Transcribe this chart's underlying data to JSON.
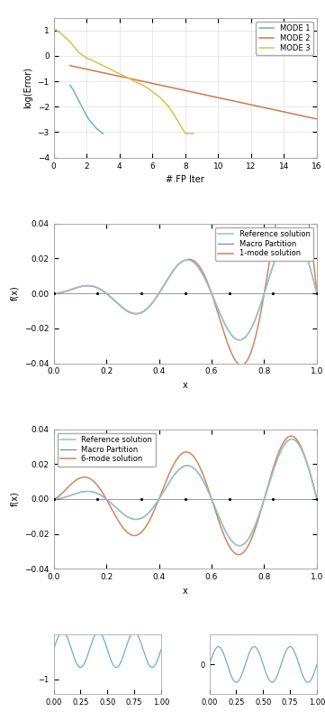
{
  "fig_width": 3.61,
  "fig_height": 7.89,
  "dpi": 100,
  "plot1": {
    "xlabel": "# FP Iter",
    "ylabel": "log(Error)",
    "xlim": [
      0,
      16
    ],
    "ylim": [
      -4,
      1.5
    ],
    "yticks": [
      -4,
      -3,
      -2,
      -1,
      0,
      1
    ],
    "xticks": [
      0,
      2,
      4,
      6,
      8,
      10,
      12,
      14,
      16
    ],
    "mode1_color": "#6aafd4",
    "mode2_color": "#d4784a",
    "mode3_color": "#d4c44a",
    "legend_labels": [
      "MODE 1",
      "MODE 2",
      "MODE 3"
    ],
    "mode1_x": [
      1.0,
      1.2,
      1.4,
      1.6,
      1.8,
      2.0,
      2.2,
      2.4,
      2.6,
      2.8,
      3.0
    ],
    "mode1_y": [
      -1.15,
      -1.35,
      -1.6,
      -1.85,
      -2.1,
      -2.35,
      -2.55,
      -2.7,
      -2.85,
      -2.95,
      -3.05
    ],
    "mode2_x": [
      1.0,
      2.0,
      3.0,
      4.0,
      5.0,
      6.0,
      7.0,
      8.0,
      9.0,
      10.0,
      11.0,
      12.0,
      13.0,
      14.0,
      15.0,
      16.0
    ],
    "mode2_y": [
      -0.38,
      -0.52,
      -0.66,
      -0.8,
      -0.94,
      -1.08,
      -1.22,
      -1.36,
      -1.5,
      -1.64,
      -1.78,
      -1.92,
      -2.06,
      -2.2,
      -2.34,
      -2.48
    ],
    "mode3_x": [
      0.0,
      0.5,
      1.0,
      1.5,
      2.0,
      2.5,
      3.0,
      3.5,
      4.0,
      4.5,
      5.0,
      5.5,
      6.0,
      6.5,
      7.0,
      7.5,
      8.0,
      8.5
    ],
    "mode3_y": [
      1.1,
      0.85,
      0.55,
      0.15,
      -0.08,
      -0.22,
      -0.38,
      -0.54,
      -0.7,
      -0.86,
      -1.02,
      -1.18,
      -1.4,
      -1.65,
      -2.0,
      -2.5,
      -3.05,
      -3.05
    ]
  },
  "plot2": {
    "xlabel": "x",
    "ylabel": "f(x)",
    "xlim": [
      0,
      1
    ],
    "ylim": [
      -0.04,
      0.04
    ],
    "yticks": [
      -0.04,
      -0.02,
      0,
      0.02,
      0.04
    ],
    "xticks": [
      0,
      0.2,
      0.4,
      0.6,
      0.8,
      1
    ],
    "ref_color": "#92c5d4",
    "macro_color": "#888888",
    "mode_color": "#d4855a",
    "legend_labels": [
      "Reference solution",
      "Macro Partition",
      "1-mode solution"
    ],
    "macro_points_x": [
      0.0,
      0.1667,
      0.3333,
      0.5,
      0.6667,
      0.8333,
      1.0
    ]
  },
  "plot3": {
    "xlabel": "x",
    "ylabel": "f(x)",
    "xlim": [
      0,
      1
    ],
    "ylim": [
      -0.04,
      0.04
    ],
    "yticks": [
      -0.04,
      -0.02,
      0,
      0.02,
      0.04
    ],
    "xticks": [
      0,
      0.2,
      0.4,
      0.6,
      0.8,
      1
    ],
    "ref_color": "#92c5d4",
    "macro_color": "#888888",
    "mode_color": "#d4855a",
    "legend_labels": [
      "Reference solution",
      "Macro Partition",
      "6-mode solution"
    ],
    "macro_points_x": [
      0.0,
      0.1667,
      0.3333,
      0.5,
      0.6667,
      0.8333,
      1.0
    ]
  },
  "plot4a": {
    "ylim": [
      -1.5,
      0.5
    ],
    "ytick": -1,
    "color": "#6aafd4"
  },
  "plot4b": {
    "ylim": [
      -0.5,
      0.5
    ],
    "ytick": 0,
    "color": "#6aafd4"
  },
  "background_color": "#ffffff"
}
